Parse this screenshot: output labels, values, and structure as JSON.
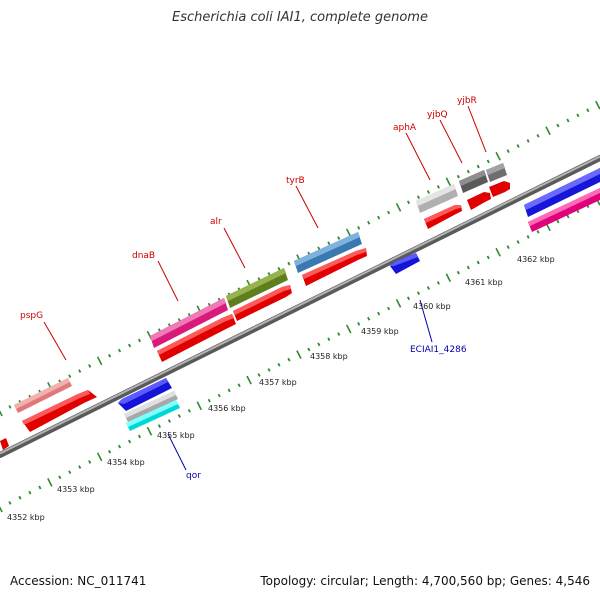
{
  "title": "Escherichia coli IAI1, complete genome",
  "footer": {
    "accession": "Accession: NC_011741",
    "stats": "Topology: circular; Length: 4,700,560 bp; Genes: 4,546"
  },
  "colors": {
    "backbone": "#8c8c8c",
    "tick": "#2e8b2e",
    "forward_label": "#cc0000",
    "reverse_label": "#0000aa",
    "pointer_red": "#cc0000",
    "pointer_blue": "#0000aa"
  },
  "kbp_labels": [
    {
      "text": "4352 kbp"
    },
    {
      "text": "4353 kbp"
    },
    {
      "text": "4354 kbp"
    },
    {
      "text": "4355 kbp"
    },
    {
      "text": "4356 kbp"
    },
    {
      "text": "4357 kbp"
    },
    {
      "text": "4358 kbp"
    },
    {
      "text": "4359 kbp"
    },
    {
      "text": "4360 kbp"
    },
    {
      "text": "4361 kbp"
    },
    {
      "text": "4362 kbp"
    }
  ],
  "gene_labels": [
    {
      "name": "pspG",
      "strand": "forward"
    },
    {
      "name": "dnaB",
      "strand": "forward"
    },
    {
      "name": "alr",
      "strand": "forward"
    },
    {
      "name": "tyrB",
      "strand": "forward"
    },
    {
      "name": "aphA",
      "strand": "forward"
    },
    {
      "name": "yjbQ",
      "strand": "forward"
    },
    {
      "name": "yjbR",
      "strand": "forward"
    },
    {
      "name": "ECIAI1_4286",
      "strand": "reverse"
    },
    {
      "name": "qor",
      "strand": "reverse"
    }
  ]
}
